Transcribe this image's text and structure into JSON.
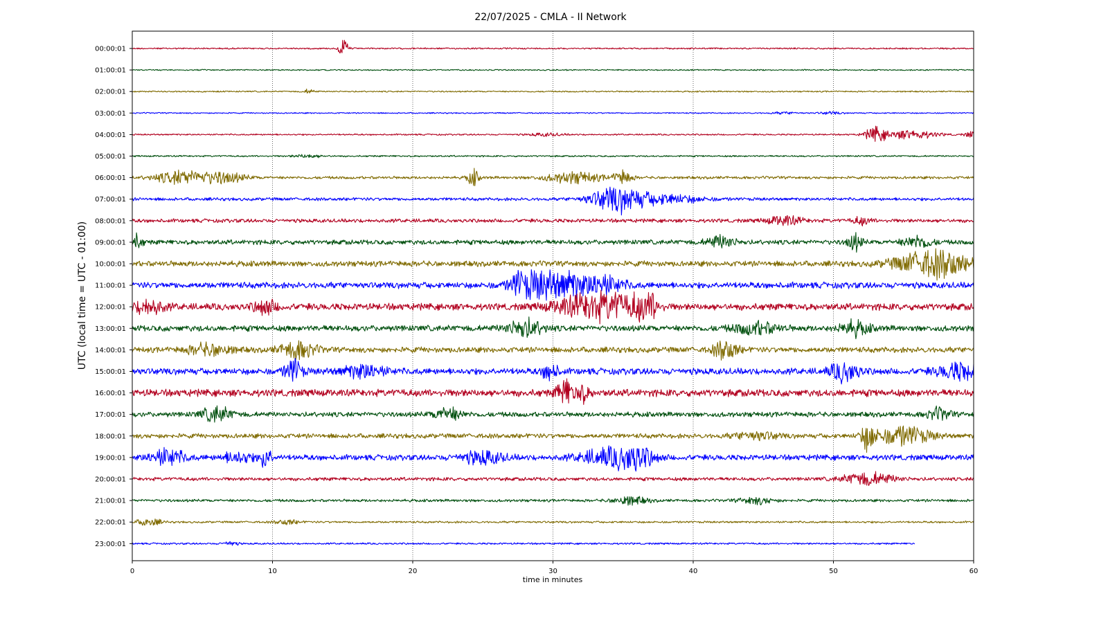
{
  "chart_data": {
    "type": "line",
    "title": "22/07/2025 - CMLA - II Network",
    "xlabel": "time in minutes",
    "ylabel": "UTC (local time = UTC - 01:00)",
    "xlim": [
      0,
      60
    ],
    "x_ticks": [
      "0",
      "10",
      "20",
      "30",
      "40",
      "50",
      "60"
    ],
    "grid": "vertical dotted at x ticks",
    "trace_colors": [
      "#b2001f",
      "#004f0e",
      "#7f6a00",
      "#0000ff"
    ],
    "series": [
      {
        "name": "00:00:01",
        "color": "#b2001f",
        "amp": 1.2,
        "end_min": 60,
        "events": [
          [
            15.1,
            0.35,
            13
          ]
        ]
      },
      {
        "name": "01:00:01",
        "color": "#004f0e",
        "amp": 1.0,
        "end_min": 60,
        "events": []
      },
      {
        "name": "02:00:01",
        "color": "#7f6a00",
        "amp": 1.1,
        "end_min": 60,
        "events": [
          [
            12.6,
            0.4,
            3
          ]
        ]
      },
      {
        "name": "03:00:01",
        "color": "#0000ff",
        "amp": 1.0,
        "end_min": 60,
        "events": [
          [
            46.5,
            1.0,
            1.5
          ],
          [
            49.8,
            0.8,
            2.0
          ]
        ]
      },
      {
        "name": "04:00:01",
        "color": "#b2001f",
        "amp": 1.2,
        "end_min": 60,
        "events": [
          [
            29.5,
            1.2,
            2.0
          ],
          [
            53.0,
            0.7,
            10
          ],
          [
            55.5,
            1.8,
            6
          ],
          [
            59.8,
            0.4,
            4
          ]
        ]
      },
      {
        "name": "05:00:01",
        "color": "#004f0e",
        "amp": 1.3,
        "end_min": 60,
        "events": [
          [
            12.5,
            1.0,
            2.0
          ]
        ]
      },
      {
        "name": "06:00:01",
        "color": "#7f6a00",
        "amp": 2.2,
        "end_min": 60,
        "events": [
          [
            3.5,
            1.8,
            5
          ],
          [
            6.5,
            1.5,
            4
          ],
          [
            24.3,
            0.4,
            6
          ],
          [
            31.5,
            2.0,
            4
          ],
          [
            35.0,
            0.6,
            5
          ]
        ]
      },
      {
        "name": "07:00:01",
        "color": "#0000ff",
        "amp": 2.5,
        "end_min": 60,
        "events": [
          [
            34.5,
            1.8,
            8
          ],
          [
            38.0,
            2.5,
            3
          ]
        ]
      },
      {
        "name": "08:00:01",
        "color": "#b2001f",
        "amp": 3.0,
        "end_min": 60,
        "events": [
          [
            46.5,
            1.2,
            2.5
          ],
          [
            52.0,
            0.6,
            2.0
          ]
        ]
      },
      {
        "name": "09:00:01",
        "color": "#004f0e",
        "amp": 3.8,
        "end_min": 60,
        "events": [
          [
            42.0,
            1.0,
            2.5
          ],
          [
            51.5,
            0.5,
            3.5
          ],
          [
            56.0,
            1.0,
            2.5
          ],
          [
            0.3,
            0.4,
            3.0
          ]
        ]
      },
      {
        "name": "10:00:01",
        "color": "#7f6a00",
        "amp": 4.5,
        "end_min": 60,
        "events": [
          [
            57.0,
            2.5,
            4.5
          ],
          [
            58.0,
            0.5,
            5
          ]
        ]
      },
      {
        "name": "11:00:01",
        "color": "#0000ff",
        "amp": 5.0,
        "end_min": 60,
        "events": [
          [
            29.8,
            2.0,
            7
          ],
          [
            33.5,
            1.5,
            3
          ],
          [
            27.5,
            0.5,
            2.5
          ]
        ]
      },
      {
        "name": "12:00:01",
        "color": "#b2001f",
        "amp": 5.5,
        "end_min": 60,
        "events": [
          [
            34.0,
            1.0,
            8
          ],
          [
            36.5,
            0.8,
            8
          ],
          [
            32.0,
            2.0,
            3
          ],
          [
            1.2,
            1.0,
            2.2
          ],
          [
            9.5,
            0.8,
            2.0
          ]
        ]
      },
      {
        "name": "13:00:01",
        "color": "#004f0e",
        "amp": 4.8,
        "end_min": 60,
        "events": [
          [
            28.0,
            1.2,
            3
          ],
          [
            44.5,
            1.5,
            2.0
          ],
          [
            51.5,
            1.0,
            2.2
          ]
        ]
      },
      {
        "name": "14:00:01",
        "color": "#7f6a00",
        "amp": 4.5,
        "end_min": 60,
        "events": [
          [
            11.8,
            1.2,
            3
          ],
          [
            42.3,
            0.8,
            3.5
          ],
          [
            5.5,
            1.5,
            2.0
          ]
        ]
      },
      {
        "name": "15:00:01",
        "color": "#0000ff",
        "amp": 5.2,
        "end_min": 60,
        "events": [
          [
            11.5,
            0.6,
            3.5
          ],
          [
            29.8,
            0.5,
            3
          ],
          [
            50.8,
            1.0,
            3
          ],
          [
            59.0,
            1.5,
            2.5
          ],
          [
            16.5,
            1.5,
            2.0
          ]
        ]
      },
      {
        "name": "16:00:01",
        "color": "#b2001f",
        "amp": 5.8,
        "end_min": 60,
        "events": [
          [
            30.8,
            0.5,
            4
          ],
          [
            32.0,
            0.5,
            2.5
          ]
        ]
      },
      {
        "name": "17:00:01",
        "color": "#004f0e",
        "amp": 4.0,
        "end_min": 60,
        "events": [
          [
            6.0,
            1.0,
            3
          ],
          [
            22.5,
            1.0,
            2.5
          ],
          [
            57.5,
            0.8,
            2.2
          ]
        ]
      },
      {
        "name": "18:00:01",
        "color": "#7f6a00",
        "amp": 3.8,
        "end_min": 60,
        "events": [
          [
            52.5,
            0.5,
            6
          ],
          [
            55.0,
            1.8,
            4
          ],
          [
            44.5,
            1.5,
            1.6
          ]
        ]
      },
      {
        "name": "19:00:01",
        "color": "#0000ff",
        "amp": 4.5,
        "end_min": 60,
        "events": [
          [
            2.5,
            1.2,
            3
          ],
          [
            9.5,
            0.4,
            4
          ],
          [
            34.0,
            2.0,
            3
          ],
          [
            36.0,
            1.2,
            3.5
          ],
          [
            25.0,
            1.5,
            2.2
          ],
          [
            7.5,
            1.0,
            2.0
          ]
        ]
      },
      {
        "name": "20:00:01",
        "color": "#b2001f",
        "amp": 2.8,
        "end_min": 60,
        "events": [
          [
            52.5,
            1.8,
            3.5
          ]
        ]
      },
      {
        "name": "21:00:01",
        "color": "#004f0e",
        "amp": 2.2,
        "end_min": 60,
        "events": [
          [
            35.5,
            1.2,
            3
          ],
          [
            44.5,
            1.2,
            2.5
          ]
        ]
      },
      {
        "name": "22:00:01",
        "color": "#7f6a00",
        "amp": 1.6,
        "end_min": 60,
        "events": [
          [
            1.2,
            0.8,
            4
          ],
          [
            11.0,
            0.8,
            2.5
          ]
        ]
      },
      {
        "name": "23:00:01",
        "color": "#0000ff",
        "amp": 1.4,
        "end_min": 55.8,
        "events": [
          [
            7.0,
            0.5,
            2.5
          ]
        ]
      }
    ]
  }
}
